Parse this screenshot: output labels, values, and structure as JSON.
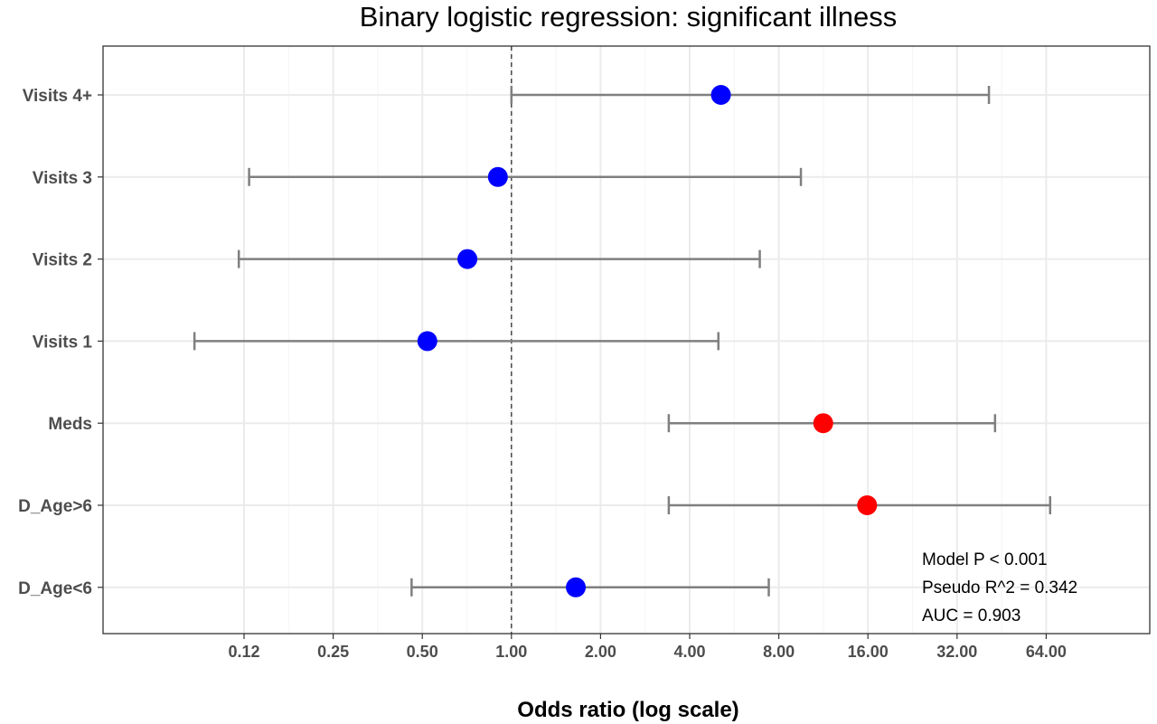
{
  "chart_data": {
    "type": "scatter",
    "subtype": "forest-plot",
    "title": "Binary logistic regression: significant illness",
    "xlabel": "Odds ratio (log scale)",
    "ylabel": "",
    "x_scale": "log2",
    "xlim": [
      0.0625,
      128
    ],
    "x_ticks": [
      0.125,
      0.25,
      0.5,
      1,
      2,
      4,
      8,
      16,
      32,
      64
    ],
    "x_tick_labels": [
      "0.12",
      "0.25",
      "0.50",
      "1.00",
      "2.00",
      "4.00",
      "8.00",
      "16.00",
      "32.00",
      "64.00"
    ],
    "reference_line": 1,
    "grid": true,
    "legend": "none",
    "categories": [
      "Visits 4+",
      "Visits 3",
      "Visits 2",
      "Visits 1",
      "Meds",
      "D_Age>6",
      "D_Age<6"
    ],
    "estimates": [
      {
        "label": "Visits 4+",
        "or": 5.1,
        "lower": 1.0,
        "upper": 41.0,
        "color": "#0000ff"
      },
      {
        "label": "Visits 3",
        "or": 0.9,
        "lower": 0.13,
        "upper": 9.5,
        "color": "#0000ff"
      },
      {
        "label": "Visits 2",
        "or": 0.71,
        "lower": 0.12,
        "upper": 6.9,
        "color": "#0000ff"
      },
      {
        "label": "Visits 1",
        "or": 0.52,
        "lower": 0.085,
        "upper": 5.0,
        "color": "#0000ff"
      },
      {
        "label": "Meds",
        "or": 11.3,
        "lower": 3.4,
        "upper": 43.0,
        "color": "#ff0000"
      },
      {
        "label": "D_Age>6",
        "or": 15.9,
        "lower": 3.4,
        "upper": 66.0,
        "color": "#ff0000"
      },
      {
        "label": "D_Age<6",
        "or": 1.65,
        "lower": 0.46,
        "upper": 7.4,
        "color": "#0000ff"
      }
    ],
    "annotations": [
      "Model P < 0.001",
      "Pseudo  R^2 = 0.342",
      "AUC = 0.903"
    ]
  },
  "colors": {
    "significant": "#ff0000",
    "not_significant": "#0000ff",
    "errorbar": "#7f7f7f",
    "grid": "#ebebeb"
  }
}
